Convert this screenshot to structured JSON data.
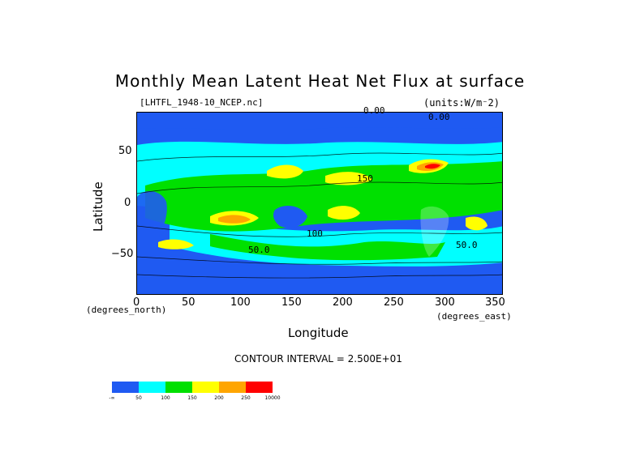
{
  "title": "Monthly Mean Latent Heat Net Flux at surface",
  "file_label": "[LHTFL_1948-10_NCEP.nc]",
  "units_label": "(units:W/m⁻2)",
  "yaxis": {
    "label": "Latitude",
    "unit": "(degrees_north)",
    "ticks": [
      "50",
      "0",
      "−50"
    ]
  },
  "xaxis": {
    "label": "Longitude",
    "unit": "(degrees_east)",
    "ticks": [
      "0",
      "50",
      "100",
      "150",
      "200",
      "250",
      "300",
      "350"
    ]
  },
  "contour_interval": "CONTOUR INTERVAL = 2.500E+01",
  "colorbar": {
    "colors": [
      "#1f5af2",
      "#00ffff",
      "#00e000",
      "#ffff00",
      "#ffa500",
      "#ff0000"
    ],
    "labels": [
      "-∞",
      "50",
      "100",
      "150",
      "200",
      "250",
      "10000"
    ]
  },
  "contour_labels": [
    "0.00",
    "0.00",
    "150",
    "100",
    "50.0",
    "50.0"
  ],
  "colors": {
    "ocean": "#1f5af2",
    "land": "#ffffff"
  }
}
